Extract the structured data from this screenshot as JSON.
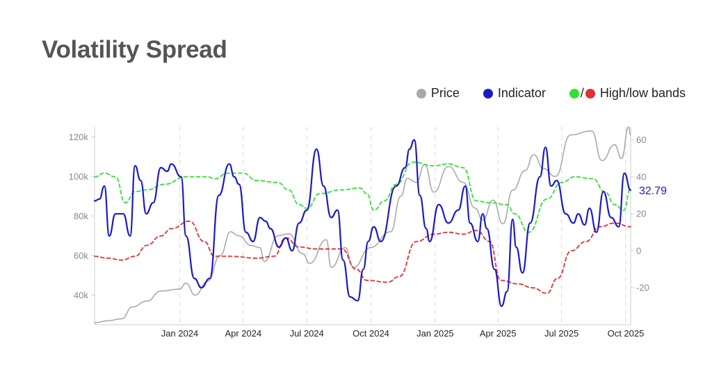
{
  "header": {
    "title": "Volatility Spread"
  },
  "legend": {
    "price_label": "Price",
    "indicator_label": "Indicator",
    "bands_label": "High/low bands",
    "bands_separator": "/"
  },
  "colors": {
    "price": "#a9a9a9",
    "indicator": "#1a1ac8",
    "high_band": "#33e033",
    "low_band": "#e03030",
    "grid": "#dcdcdc",
    "axis_text": "#888888"
  },
  "chart_data": {
    "type": "line",
    "title": "Volatility Spread",
    "x_range": [
      "2023-09-01",
      "2025-10-08"
    ],
    "x_ticks": [
      "Jan 2024",
      "Apr 2024",
      "Jul 2024",
      "Oct 2024",
      "Jan 2025",
      "Apr 2025",
      "Jul 2025",
      "Oct 2025"
    ],
    "x_tick_dates": [
      "2024-01-01",
      "2024-04-01",
      "2024-07-01",
      "2024-10-01",
      "2025-01-01",
      "2025-04-01",
      "2025-07-01",
      "2025-10-01"
    ],
    "left_axis": {
      "ticks": [
        "40k",
        "60k",
        "80k",
        "100k",
        "120k"
      ],
      "tick_values": [
        40000,
        60000,
        80000,
        100000,
        120000
      ],
      "range": [
        25000,
        125000
      ]
    },
    "right_axis": {
      "ticks": [
        "-20",
        "0",
        "20",
        "40",
        "60"
      ],
      "tick_values": [
        -20,
        0,
        20,
        40,
        60
      ],
      "range": [
        -40,
        67
      ]
    },
    "grid": "vertical dashed",
    "legend_position": "top-right",
    "last_value_label": "32.79",
    "series": [
      {
        "name": "Price",
        "axis": "left",
        "points": [
          [
            "2023-09-01",
            26000
          ],
          [
            "2023-09-20",
            27000
          ],
          [
            "2023-10-10",
            28000
          ],
          [
            "2023-10-25",
            34000
          ],
          [
            "2023-11-15",
            37000
          ],
          [
            "2023-12-05",
            42000
          ],
          [
            "2024-01-01",
            43000
          ],
          [
            "2024-01-10",
            46000
          ],
          [
            "2024-01-23",
            40000
          ],
          [
            "2024-02-10",
            47000
          ],
          [
            "2024-02-28",
            60000
          ],
          [
            "2024-03-14",
            72000
          ],
          [
            "2024-03-25",
            70000
          ],
          [
            "2024-04-13",
            65000
          ],
          [
            "2024-04-25",
            64000
          ],
          [
            "2024-05-01",
            57000
          ],
          [
            "2024-05-21",
            70000
          ],
          [
            "2024-06-05",
            71000
          ],
          [
            "2024-06-25",
            61000
          ],
          [
            "2024-07-05",
            56000
          ],
          [
            "2024-07-29",
            68000
          ],
          [
            "2024-08-05",
            54000
          ],
          [
            "2024-08-25",
            64000
          ],
          [
            "2024-09-06",
            54000
          ],
          [
            "2024-09-30",
            64000
          ],
          [
            "2024-10-29",
            72000
          ],
          [
            "2024-11-13",
            90000
          ],
          [
            "2024-11-22",
            99000
          ],
          [
            "2024-12-05",
            97000
          ],
          [
            "2024-12-17",
            106000
          ],
          [
            "2024-12-30",
            92000
          ],
          [
            "2025-01-20",
            105000
          ],
          [
            "2025-02-10",
            97000
          ],
          [
            "2025-02-27",
            84000
          ],
          [
            "2025-03-10",
            78000
          ],
          [
            "2025-03-25",
            88000
          ],
          [
            "2025-04-08",
            76000
          ],
          [
            "2025-04-22",
            93000
          ],
          [
            "2025-05-10",
            103000
          ],
          [
            "2025-05-22",
            111000
          ],
          [
            "2025-06-05",
            104000
          ],
          [
            "2025-06-22",
            100000
          ],
          [
            "2025-07-14",
            121000
          ],
          [
            "2025-08-13",
            123000
          ],
          [
            "2025-08-28",
            108000
          ],
          [
            "2025-09-15",
            116000
          ],
          [
            "2025-09-25",
            109000
          ],
          [
            "2025-10-05",
            125000
          ],
          [
            "2025-10-08",
            121000
          ]
        ]
      },
      {
        "name": "Indicator",
        "axis": "right",
        "points": [
          [
            "2023-09-01",
            27
          ],
          [
            "2023-09-08",
            28
          ],
          [
            "2023-09-15",
            35
          ],
          [
            "2023-09-22",
            8
          ],
          [
            "2023-10-01",
            20
          ],
          [
            "2023-10-12",
            20
          ],
          [
            "2023-10-22",
            8
          ],
          [
            "2023-10-29",
            46
          ],
          [
            "2023-11-06",
            38
          ],
          [
            "2023-11-14",
            20
          ],
          [
            "2023-11-24",
            26
          ],
          [
            "2023-12-05",
            45
          ],
          [
            "2023-12-14",
            43
          ],
          [
            "2023-12-20",
            47
          ],
          [
            "2024-01-03",
            40
          ],
          [
            "2024-01-10",
            8
          ],
          [
            "2024-01-22",
            -15
          ],
          [
            "2024-02-01",
            -20
          ],
          [
            "2024-02-13",
            -15
          ],
          [
            "2024-02-26",
            30
          ],
          [
            "2024-03-12",
            47
          ],
          [
            "2024-03-19",
            40
          ],
          [
            "2024-03-26",
            36
          ],
          [
            "2024-04-05",
            10
          ],
          [
            "2024-04-15",
            5
          ],
          [
            "2024-04-25",
            18
          ],
          [
            "2024-05-03",
            16
          ],
          [
            "2024-05-10",
            12
          ],
          [
            "2024-05-22",
            2
          ],
          [
            "2024-06-01",
            7
          ],
          [
            "2024-06-10",
            0
          ],
          [
            "2024-06-20",
            15
          ],
          [
            "2024-07-01",
            22
          ],
          [
            "2024-07-15",
            55
          ],
          [
            "2024-07-25",
            35
          ],
          [
            "2024-08-05",
            18
          ],
          [
            "2024-08-14",
            22
          ],
          [
            "2024-08-22",
            -5
          ],
          [
            "2024-09-01",
            -25
          ],
          [
            "2024-09-12",
            -27
          ],
          [
            "2024-09-20",
            -10
          ],
          [
            "2024-09-27",
            5
          ],
          [
            "2024-10-05",
            13
          ],
          [
            "2024-10-15",
            5
          ],
          [
            "2024-11-06",
            35
          ],
          [
            "2024-11-19",
            45
          ],
          [
            "2024-11-25",
            55
          ],
          [
            "2024-12-02",
            60
          ],
          [
            "2024-12-10",
            30
          ],
          [
            "2024-12-19",
            12
          ],
          [
            "2024-12-24",
            5
          ],
          [
            "2025-01-06",
            25
          ],
          [
            "2025-01-20",
            15
          ],
          [
            "2025-02-03",
            22
          ],
          [
            "2025-02-13",
            35
          ],
          [
            "2025-02-20",
            15
          ],
          [
            "2025-03-03",
            5
          ],
          [
            "2025-03-10",
            20
          ],
          [
            "2025-03-16",
            12
          ],
          [
            "2025-03-27",
            -10
          ],
          [
            "2025-04-06",
            -30
          ],
          [
            "2025-04-14",
            -22
          ],
          [
            "2025-04-22",
            17
          ],
          [
            "2025-04-27",
            2
          ],
          [
            "2025-05-06",
            -12
          ],
          [
            "2025-05-17",
            15
          ],
          [
            "2025-05-31",
            40
          ],
          [
            "2025-06-08",
            56
          ],
          [
            "2025-06-16",
            35
          ],
          [
            "2025-06-24",
            38
          ],
          [
            "2025-07-07",
            20
          ],
          [
            "2025-07-18",
            15
          ],
          [
            "2025-07-25",
            20
          ],
          [
            "2025-08-03",
            14
          ],
          [
            "2025-08-10",
            23
          ],
          [
            "2025-08-20",
            10
          ],
          [
            "2025-08-30",
            32
          ],
          [
            "2025-09-10",
            18
          ],
          [
            "2025-09-21",
            13
          ],
          [
            "2025-09-29",
            42
          ],
          [
            "2025-10-08",
            32.79
          ]
        ]
      },
      {
        "name": "High band",
        "axis": "right",
        "points": [
          [
            "2023-09-01",
            40
          ],
          [
            "2023-09-15",
            42
          ],
          [
            "2023-10-01",
            40
          ],
          [
            "2023-10-15",
            26
          ],
          [
            "2023-10-29",
            32
          ],
          [
            "2023-11-15",
            33
          ],
          [
            "2023-12-10",
            36
          ],
          [
            "2024-01-10",
            40
          ],
          [
            "2024-02-10",
            40
          ],
          [
            "2024-02-20",
            39
          ],
          [
            "2024-03-10",
            42
          ],
          [
            "2024-04-01",
            42
          ],
          [
            "2024-04-20",
            38
          ],
          [
            "2024-05-20",
            37
          ],
          [
            "2024-06-05",
            33
          ],
          [
            "2024-06-20",
            25
          ],
          [
            "2024-07-01",
            23
          ],
          [
            "2024-07-20",
            31
          ],
          [
            "2024-08-20",
            33
          ],
          [
            "2024-09-15",
            34
          ],
          [
            "2024-09-25",
            31
          ],
          [
            "2024-10-05",
            22
          ],
          [
            "2024-10-20",
            27
          ],
          [
            "2024-11-06",
            36
          ],
          [
            "2024-11-30",
            48
          ],
          [
            "2024-12-30",
            46
          ],
          [
            "2025-01-20",
            47
          ],
          [
            "2025-02-10",
            45
          ],
          [
            "2025-03-01",
            27
          ],
          [
            "2025-03-20",
            26
          ],
          [
            "2025-04-14",
            25
          ],
          [
            "2025-04-25",
            20
          ],
          [
            "2025-05-15",
            10
          ],
          [
            "2025-06-10",
            28
          ],
          [
            "2025-07-01",
            37
          ],
          [
            "2025-07-20",
            40
          ],
          [
            "2025-08-15",
            39
          ],
          [
            "2025-09-01",
            32
          ],
          [
            "2025-09-15",
            25
          ],
          [
            "2025-09-28",
            22
          ],
          [
            "2025-10-08",
            34
          ]
        ]
      },
      {
        "name": "Low band",
        "axis": "right",
        "points": [
          [
            "2023-09-01",
            -3
          ],
          [
            "2023-09-20",
            -4
          ],
          [
            "2023-10-10",
            -5
          ],
          [
            "2023-10-29",
            -3
          ],
          [
            "2023-11-15",
            3
          ],
          [
            "2023-12-05",
            8
          ],
          [
            "2023-12-20",
            12
          ],
          [
            "2024-01-15",
            16
          ],
          [
            "2024-02-05",
            5
          ],
          [
            "2024-02-20",
            -3
          ],
          [
            "2024-03-15",
            -3
          ],
          [
            "2024-04-20",
            -4
          ],
          [
            "2024-05-15",
            -3
          ],
          [
            "2024-06-01",
            7
          ],
          [
            "2024-06-20",
            2
          ],
          [
            "2024-07-15",
            1
          ],
          [
            "2024-08-20",
            1
          ],
          [
            "2024-09-10",
            -10
          ],
          [
            "2024-09-25",
            -16
          ],
          [
            "2024-10-25",
            -17
          ],
          [
            "2024-11-10",
            -14
          ],
          [
            "2024-12-05",
            5
          ],
          [
            "2024-12-30",
            9
          ],
          [
            "2025-01-20",
            10
          ],
          [
            "2025-02-10",
            9
          ],
          [
            "2025-03-01",
            11
          ],
          [
            "2025-03-20",
            5
          ],
          [
            "2025-04-05",
            -16
          ],
          [
            "2025-05-01",
            -18
          ],
          [
            "2025-05-20",
            -20
          ],
          [
            "2025-06-10",
            -23
          ],
          [
            "2025-06-25",
            -15
          ],
          [
            "2025-07-15",
            0
          ],
          [
            "2025-08-05",
            5
          ],
          [
            "2025-08-25",
            13
          ],
          [
            "2025-09-15",
            15
          ],
          [
            "2025-10-08",
            13
          ]
        ]
      }
    ]
  }
}
